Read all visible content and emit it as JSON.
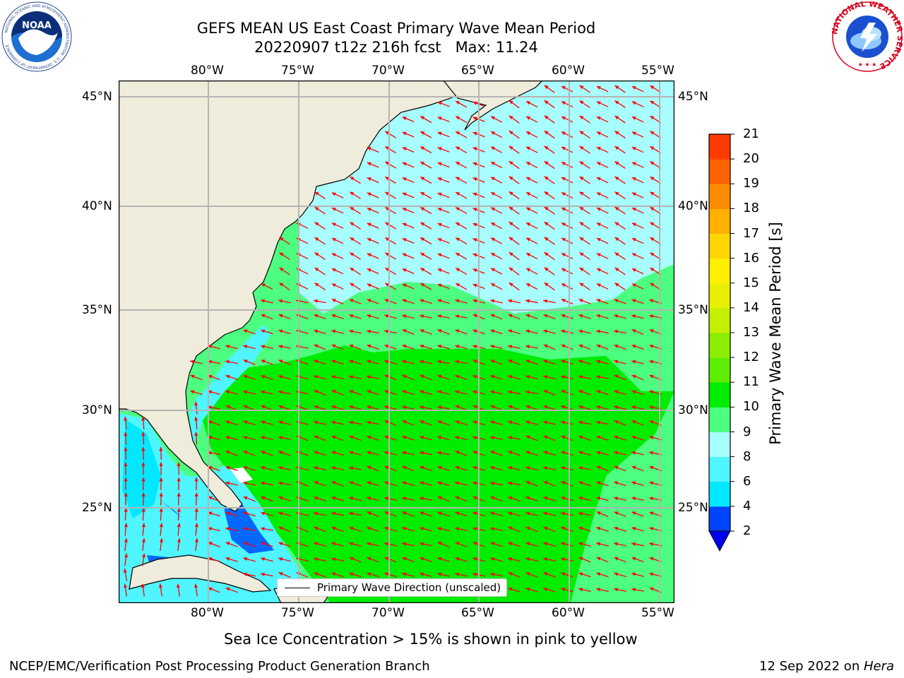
{
  "header": {
    "title_line1": "GEFS MEAN US East Coast Primary Wave Mean Period",
    "title_line2": "20220907 t12z 216h fcst   Max: 11.24"
  },
  "map": {
    "lon_labels": [
      "80°W",
      "75°W",
      "70°W",
      "65°W",
      "60°W",
      "55°W"
    ],
    "lat_labels": [
      "45°N",
      "40°N",
      "35°N",
      "30°N",
      "25°N"
    ],
    "legend_label": "Primary Wave Direction (unscaled)",
    "arrow_color": "#ff0000",
    "land_color": "#efecdc"
  },
  "colorbar": {
    "label": "Primary Wave Mean Period [s]",
    "ticks": [
      "2",
      "4",
      "6",
      "8",
      "9",
      "10",
      "11",
      "12",
      "13",
      "14",
      "15",
      "16",
      "17",
      "18",
      "19",
      "20",
      "21"
    ],
    "colors": [
      "#0044ff",
      "#00e8ff",
      "#4ff5ff",
      "#a8fdff",
      "#4dff80",
      "#00ec00",
      "#5ced00",
      "#8cee00",
      "#c4ef00",
      "#e8ef00",
      "#fff000",
      "#ffd500",
      "#ffb000",
      "#ff8c00",
      "#ff6200",
      "#ff3b00",
      "#ff0000"
    ],
    "under_color": "#0000ee"
  },
  "notes": {
    "sea_ice": "Sea Ice Concentration > 15% is shown in pink to yellow"
  },
  "footer": {
    "left": "NCEP/EMC/Verification Post Processing Product Generation Branch",
    "date": "12 Sep 2022 on ",
    "machine": "Hera"
  },
  "logos": {
    "noaa_text": "NOAA",
    "noaa_ring": "NATIONAL OCEANIC AND ATMOSPHERIC ADMINISTRATION · U.S. DEPARTMENT OF COMMERCE",
    "nws_ring": "NATIONAL WEATHER SERVICE"
  }
}
